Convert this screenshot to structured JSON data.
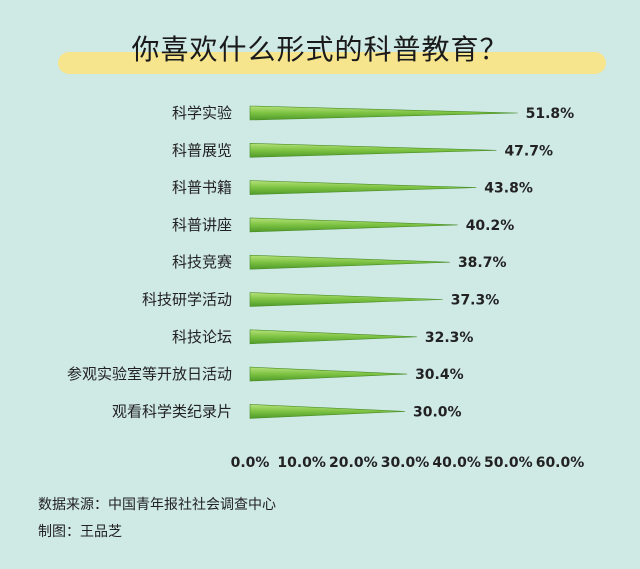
{
  "chart_data": {
    "type": "bar",
    "title": "你喜欢什么形式的科普教育？",
    "categories": [
      "科学实验",
      "科普展览",
      "科普书籍",
      "科普讲座",
      "科技竞赛",
      "科技研学活动",
      "科技论坛",
      "参观实验室等开放日活动",
      "观看科学类纪录片"
    ],
    "values": [
      51.8,
      47.7,
      43.8,
      40.2,
      38.7,
      37.3,
      32.3,
      30.4,
      30.0
    ],
    "value_labels": [
      "51.8%",
      "47.7%",
      "43.8%",
      "40.2%",
      "38.7%",
      "37.3%",
      "32.3%",
      "30.4%",
      "30.0%"
    ],
    "xlim": [
      0,
      60
    ],
    "x_ticks": [
      "0.0%",
      "10.0%",
      "20.0%",
      "30.0%",
      "40.0%",
      "50.0%",
      "60.0%"
    ],
    "orientation": "horizontal",
    "grid": false,
    "bar_color": "#7cc242"
  },
  "footer": {
    "source": "数据来源：中国青年报社社会调查中心",
    "credit": "制图：王品芝"
  }
}
